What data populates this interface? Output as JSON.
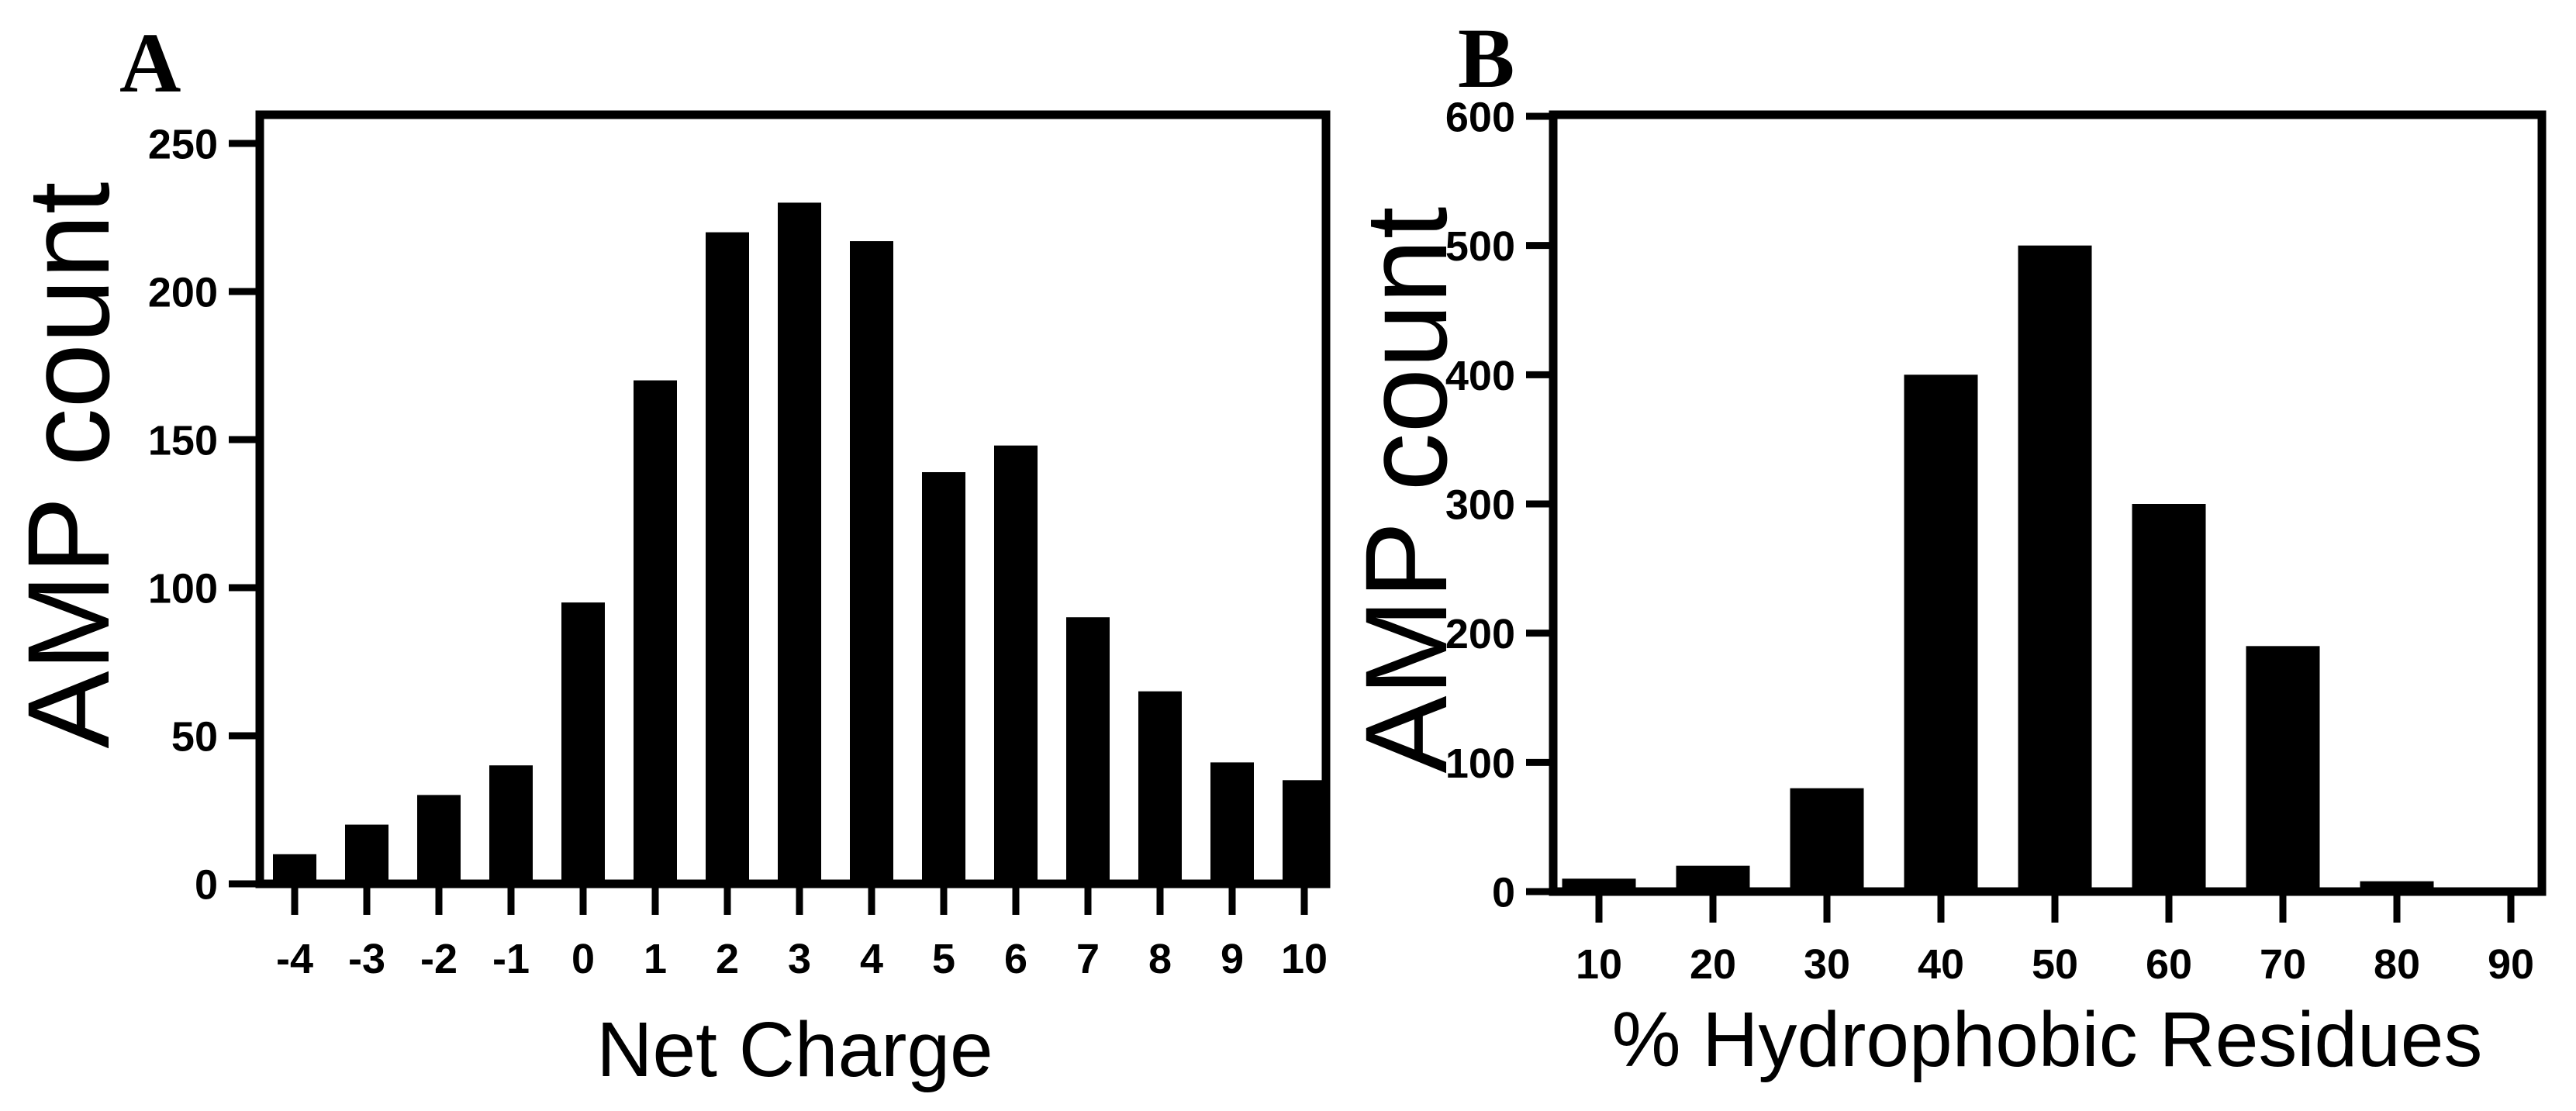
{
  "chart_data": [
    {
      "type": "bar",
      "panel_label": "A",
      "title": "",
      "xlabel": "Net Charge",
      "ylabel": "AMP count",
      "categories": [
        "-4",
        "-3",
        "-2",
        "-1",
        "0",
        "1",
        "2",
        "3",
        "4",
        "5",
        "6",
        "7",
        "8",
        "9",
        "10"
      ],
      "values": [
        10,
        20,
        30,
        40,
        95,
        170,
        220,
        230,
        217,
        139,
        148,
        90,
        65,
        41,
        35
      ],
      "ylim": [
        0,
        260
      ],
      "yticks": [
        "0",
        "50",
        "100",
        "150",
        "200",
        "250"
      ],
      "grid": false,
      "color": "#000000"
    },
    {
      "type": "bar",
      "panel_label": "B",
      "title": "",
      "xlabel": "% Hydrophobic Residues",
      "ylabel": "AMP count",
      "categories": [
        "10",
        "20",
        "30",
        "40",
        "50",
        "60",
        "70",
        "80",
        "90"
      ],
      "values": [
        10,
        20,
        80,
        400,
        500,
        300,
        190,
        8,
        0
      ],
      "ylim": [
        0,
        600
      ],
      "yticks": [
        "0",
        "100",
        "200",
        "300",
        "400",
        "500",
        "600"
      ],
      "grid": false,
      "color": "#000000"
    }
  ]
}
